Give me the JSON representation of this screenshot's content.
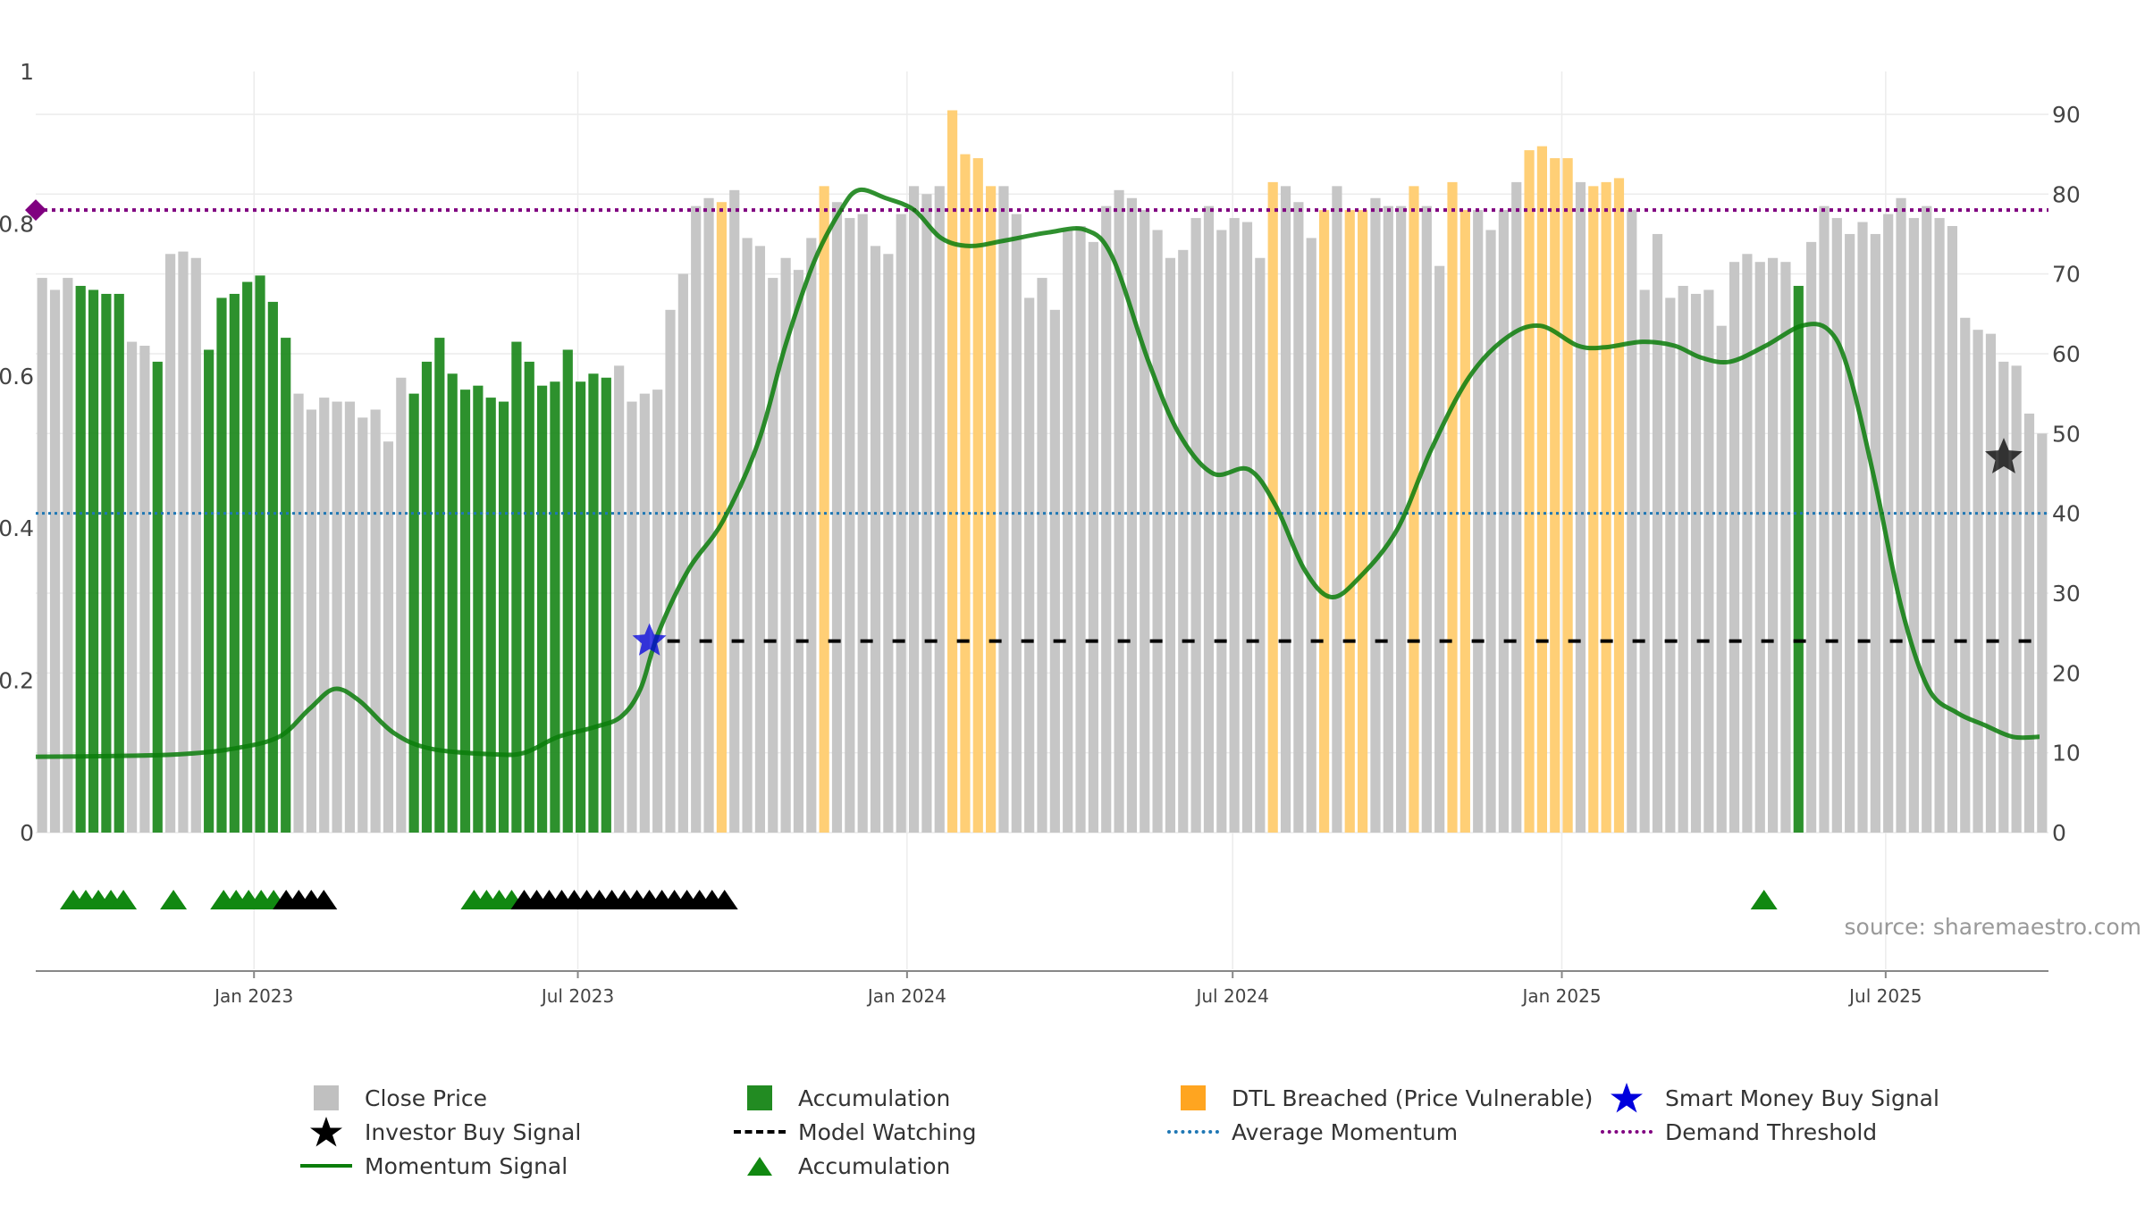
{
  "chart_data": {
    "type": "bar",
    "left_axis": {
      "ticks": [
        "0",
        "0.2",
        "0.4",
        "0.6",
        "0.8",
        "1"
      ],
      "range": [
        0,
        1
      ]
    },
    "right_axis": {
      "ticks": [
        "0",
        "10",
        "20",
        "30",
        "40",
        "50",
        "60",
        "70",
        "80",
        "90"
      ],
      "range": [
        0,
        95
      ]
    },
    "x_axis": {
      "start": "2022-09-01",
      "end": "2025-09-30",
      "ticks": [
        {
          "date": "2023-01-01",
          "label": "Jan 2023"
        },
        {
          "date": "2023-07-01",
          "label": "Jul 2023"
        },
        {
          "date": "2024-01-01",
          "label": "Jan 2024"
        },
        {
          "date": "2024-07-01",
          "label": "Jul 2024"
        },
        {
          "date": "2025-01-01",
          "label": "Jan 2025"
        },
        {
          "date": "2025-07-01",
          "label": "Jul 2025"
        }
      ]
    },
    "close_price": [
      {
        "value": 69.5,
        "state": "close"
      },
      {
        "value": 68,
        "state": "close"
      },
      {
        "value": 69.5,
        "state": "close"
      },
      {
        "value": 68.5,
        "state": "accumulation"
      },
      {
        "value": 68,
        "state": "accumulation"
      },
      {
        "value": 67.5,
        "state": "accumulation"
      },
      {
        "value": 67.5,
        "state": "accumulation"
      },
      {
        "value": 61.5,
        "state": "close"
      },
      {
        "value": 61,
        "state": "close"
      },
      {
        "value": 59,
        "state": "accumulation"
      },
      {
        "value": 72.5,
        "state": "close"
      },
      {
        "value": 72.8,
        "state": "close"
      },
      {
        "value": 72,
        "state": "close"
      },
      {
        "value": 60.5,
        "state": "accumulation"
      },
      {
        "value": 67,
        "state": "accumulation"
      },
      {
        "value": 67.5,
        "state": "accumulation"
      },
      {
        "value": 69,
        "state": "accumulation"
      },
      {
        "value": 69.8,
        "state": "accumulation"
      },
      {
        "value": 66.5,
        "state": "accumulation"
      },
      {
        "value": 62,
        "state": "accumulation"
      },
      {
        "value": 55,
        "state": "close"
      },
      {
        "value": 53,
        "state": "close"
      },
      {
        "value": 54.5,
        "state": "close"
      },
      {
        "value": 54,
        "state": "close"
      },
      {
        "value": 54,
        "state": "close"
      },
      {
        "value": 52,
        "state": "close"
      },
      {
        "value": 53,
        "state": "close"
      },
      {
        "value": 49,
        "state": "close"
      },
      {
        "value": 57,
        "state": "close"
      },
      {
        "value": 55,
        "state": "accumulation"
      },
      {
        "value": 59,
        "state": "accumulation"
      },
      {
        "value": 62,
        "state": "accumulation"
      },
      {
        "value": 57.5,
        "state": "accumulation"
      },
      {
        "value": 55.5,
        "state": "accumulation"
      },
      {
        "value": 56,
        "state": "accumulation"
      },
      {
        "value": 54.5,
        "state": "accumulation"
      },
      {
        "value": 54,
        "state": "accumulation"
      },
      {
        "value": 61.5,
        "state": "accumulation"
      },
      {
        "value": 59,
        "state": "accumulation"
      },
      {
        "value": 56,
        "state": "accumulation"
      },
      {
        "value": 56.5,
        "state": "accumulation"
      },
      {
        "value": 60.5,
        "state": "accumulation"
      },
      {
        "value": 56.5,
        "state": "accumulation"
      },
      {
        "value": 57.5,
        "state": "accumulation"
      },
      {
        "value": 57,
        "state": "accumulation"
      },
      {
        "value": 58.5,
        "state": "close"
      },
      {
        "value": 54,
        "state": "close"
      },
      {
        "value": 55,
        "state": "close"
      },
      {
        "value": 55.5,
        "state": "close"
      },
      {
        "value": 65.5,
        "state": "close"
      },
      {
        "value": 70,
        "state": "close"
      },
      {
        "value": 78.5,
        "state": "close"
      },
      {
        "value": 79.5,
        "state": "close"
      },
      {
        "value": 79,
        "state": "dtl"
      },
      {
        "value": 80.5,
        "state": "close"
      },
      {
        "value": 74.5,
        "state": "close"
      },
      {
        "value": 73.5,
        "state": "close"
      },
      {
        "value": 69.5,
        "state": "close"
      },
      {
        "value": 72,
        "state": "close"
      },
      {
        "value": 70.5,
        "state": "close"
      },
      {
        "value": 74.5,
        "state": "close"
      },
      {
        "value": 81,
        "state": "dtl"
      },
      {
        "value": 79,
        "state": "close"
      },
      {
        "value": 77,
        "state": "close"
      },
      {
        "value": 77.5,
        "state": "close"
      },
      {
        "value": 73.5,
        "state": "close"
      },
      {
        "value": 72.5,
        "state": "close"
      },
      {
        "value": 77.5,
        "state": "close"
      },
      {
        "value": 81,
        "state": "close"
      },
      {
        "value": 80,
        "state": "close"
      },
      {
        "value": 81,
        "state": "close"
      },
      {
        "value": 90.5,
        "state": "dtl"
      },
      {
        "value": 85,
        "state": "dtl"
      },
      {
        "value": 84.5,
        "state": "dtl"
      },
      {
        "value": 81,
        "state": "dtl"
      },
      {
        "value": 81,
        "state": "close"
      },
      {
        "value": 77.5,
        "state": "close"
      },
      {
        "value": 67,
        "state": "close"
      },
      {
        "value": 69.5,
        "state": "close"
      },
      {
        "value": 65.5,
        "state": "close"
      },
      {
        "value": 75.5,
        "state": "close"
      },
      {
        "value": 76,
        "state": "close"
      },
      {
        "value": 74,
        "state": "close"
      },
      {
        "value": 78.5,
        "state": "close"
      },
      {
        "value": 80.5,
        "state": "close"
      },
      {
        "value": 79.5,
        "state": "close"
      },
      {
        "value": 78,
        "state": "close"
      },
      {
        "value": 75.5,
        "state": "close"
      },
      {
        "value": 72,
        "state": "close"
      },
      {
        "value": 73,
        "state": "close"
      },
      {
        "value": 77,
        "state": "close"
      },
      {
        "value": 78.5,
        "state": "close"
      },
      {
        "value": 75.5,
        "state": "close"
      },
      {
        "value": 77,
        "state": "close"
      },
      {
        "value": 76.5,
        "state": "close"
      },
      {
        "value": 72,
        "state": "close"
      },
      {
        "value": 81.5,
        "state": "dtl"
      },
      {
        "value": 81,
        "state": "close"
      },
      {
        "value": 79,
        "state": "close"
      },
      {
        "value": 74.5,
        "state": "close"
      },
      {
        "value": 78,
        "state": "dtl"
      },
      {
        "value": 81,
        "state": "close"
      },
      {
        "value": 78,
        "state": "dtl"
      },
      {
        "value": 78,
        "state": "dtl"
      },
      {
        "value": 79.5,
        "state": "close"
      },
      {
        "value": 78.5,
        "state": "close"
      },
      {
        "value": 78.5,
        "state": "close"
      },
      {
        "value": 81,
        "state": "dtl"
      },
      {
        "value": 78.5,
        "state": "close"
      },
      {
        "value": 71,
        "state": "close"
      },
      {
        "value": 81.5,
        "state": "dtl"
      },
      {
        "value": 78,
        "state": "dtl"
      },
      {
        "value": 78,
        "state": "close"
      },
      {
        "value": 75.5,
        "state": "close"
      },
      {
        "value": 78,
        "state": "close"
      },
      {
        "value": 81.5,
        "state": "close"
      },
      {
        "value": 85.5,
        "state": "dtl"
      },
      {
        "value": 86,
        "state": "dtl"
      },
      {
        "value": 84.5,
        "state": "dtl"
      },
      {
        "value": 84.5,
        "state": "dtl"
      },
      {
        "value": 81.5,
        "state": "close"
      },
      {
        "value": 81,
        "state": "dtl"
      },
      {
        "value": 81.5,
        "state": "dtl"
      },
      {
        "value": 82,
        "state": "dtl"
      },
      {
        "value": 78,
        "state": "close"
      },
      {
        "value": 68,
        "state": "close"
      },
      {
        "value": 75,
        "state": "close"
      },
      {
        "value": 67,
        "state": "close"
      },
      {
        "value": 68.5,
        "state": "close"
      },
      {
        "value": 67.5,
        "state": "close"
      },
      {
        "value": 68,
        "state": "close"
      },
      {
        "value": 63.5,
        "state": "close"
      },
      {
        "value": 71.5,
        "state": "close"
      },
      {
        "value": 72.5,
        "state": "close"
      },
      {
        "value": 71.5,
        "state": "close"
      },
      {
        "value": 72,
        "state": "close"
      },
      {
        "value": 71.5,
        "state": "close"
      },
      {
        "value": 68.5,
        "state": "accumulation"
      },
      {
        "value": 74,
        "state": "close"
      },
      {
        "value": 78.5,
        "state": "close"
      },
      {
        "value": 77,
        "state": "close"
      },
      {
        "value": 75,
        "state": "close"
      },
      {
        "value": 76.5,
        "state": "close"
      },
      {
        "value": 75,
        "state": "close"
      },
      {
        "value": 77.5,
        "state": "close"
      },
      {
        "value": 79.5,
        "state": "close"
      },
      {
        "value": 77,
        "state": "close"
      },
      {
        "value": 78.5,
        "state": "close"
      },
      {
        "value": 77,
        "state": "close"
      },
      {
        "value": 76,
        "state": "close"
      },
      {
        "value": 64.5,
        "state": "close"
      },
      {
        "value": 63,
        "state": "close"
      },
      {
        "value": 62.5,
        "state": "close"
      },
      {
        "value": 59,
        "state": "close"
      },
      {
        "value": 58.5,
        "state": "close"
      },
      {
        "value": 52.5,
        "state": "close"
      },
      {
        "value": 50,
        "state": "close"
      }
    ],
    "momentum_signal": [
      {
        "date": "2022-09-01",
        "y": 9.5
      },
      {
        "date": "2022-10-15",
        "y": 9.6
      },
      {
        "date": "2022-11-20",
        "y": 9.8
      },
      {
        "date": "2022-12-20",
        "y": 10.5
      },
      {
        "date": "2023-01-15",
        "y": 12
      },
      {
        "date": "2023-02-01",
        "y": 15.5
      },
      {
        "date": "2023-02-15",
        "y": 18
      },
      {
        "date": "2023-03-01",
        "y": 16.5
      },
      {
        "date": "2023-03-20",
        "y": 12.5
      },
      {
        "date": "2023-04-10",
        "y": 10.5
      },
      {
        "date": "2023-05-15",
        "y": 9.8
      },
      {
        "date": "2023-06-01",
        "y": 10
      },
      {
        "date": "2023-06-20",
        "y": 12
      },
      {
        "date": "2023-07-10",
        "y": 13.2
      },
      {
        "date": "2023-07-25",
        "y": 14.5
      },
      {
        "date": "2023-08-05",
        "y": 18
      },
      {
        "date": "2023-08-15",
        "y": 25
      },
      {
        "date": "2023-09-01",
        "y": 33
      },
      {
        "date": "2023-09-20",
        "y": 39
      },
      {
        "date": "2023-10-10",
        "y": 49
      },
      {
        "date": "2023-10-25",
        "y": 61
      },
      {
        "date": "2023-11-10",
        "y": 71.5
      },
      {
        "date": "2023-11-25",
        "y": 78
      },
      {
        "date": "2023-12-05",
        "y": 80.5
      },
      {
        "date": "2023-12-20",
        "y": 79.5
      },
      {
        "date": "2024-01-05",
        "y": 78
      },
      {
        "date": "2024-01-20",
        "y": 74.5
      },
      {
        "date": "2024-02-05",
        "y": 73.5
      },
      {
        "date": "2024-02-25",
        "y": 74.2
      },
      {
        "date": "2024-03-20",
        "y": 75.2
      },
      {
        "date": "2024-04-10",
        "y": 75.5
      },
      {
        "date": "2024-04-25",
        "y": 72
      },
      {
        "date": "2024-05-15",
        "y": 59
      },
      {
        "date": "2024-06-01",
        "y": 50
      },
      {
        "date": "2024-06-20",
        "y": 45
      },
      {
        "date": "2024-07-10",
        "y": 45.5
      },
      {
        "date": "2024-07-25",
        "y": 41
      },
      {
        "date": "2024-08-10",
        "y": 33
      },
      {
        "date": "2024-08-25",
        "y": 29.5
      },
      {
        "date": "2024-09-10",
        "y": 32
      },
      {
        "date": "2024-10-01",
        "y": 38
      },
      {
        "date": "2024-10-20",
        "y": 48
      },
      {
        "date": "2024-11-10",
        "y": 57
      },
      {
        "date": "2024-12-01",
        "y": 62
      },
      {
        "date": "2024-12-20",
        "y": 63.5
      },
      {
        "date": "2025-01-10",
        "y": 61
      },
      {
        "date": "2025-01-25",
        "y": 60.8
      },
      {
        "date": "2025-02-15",
        "y": 61.5
      },
      {
        "date": "2025-03-05",
        "y": 61
      },
      {
        "date": "2025-03-20",
        "y": 59.5
      },
      {
        "date": "2025-04-05",
        "y": 59
      },
      {
        "date": "2025-04-25",
        "y": 61
      },
      {
        "date": "2025-05-15",
        "y": 63.5
      },
      {
        "date": "2025-05-30",
        "y": 63
      },
      {
        "date": "2025-06-10",
        "y": 58
      },
      {
        "date": "2025-06-25",
        "y": 44
      },
      {
        "date": "2025-07-10",
        "y": 28
      },
      {
        "date": "2025-07-25",
        "y": 18
      },
      {
        "date": "2025-08-10",
        "y": 15
      },
      {
        "date": "2025-08-25",
        "y": 13.5
      },
      {
        "date": "2025-09-10",
        "y": 12
      },
      {
        "date": "2025-09-25",
        "y": 12
      }
    ],
    "model_watching": {
      "y": 24,
      "from": "2023-08-20",
      "to": "2025-09-25"
    },
    "average_momentum": 40,
    "demand_threshold": 78,
    "smart_money_buy_signal": [
      {
        "date": "2023-08-10",
        "y": 24
      }
    ],
    "investor_buy_signal": [
      {
        "date": "2025-09-05",
        "y": 47
      }
    ],
    "accumulation_triangles": [
      {
        "date": "2022-09-22",
        "color": "green"
      },
      {
        "date": "2022-09-29",
        "color": "green"
      },
      {
        "date": "2022-10-06",
        "color": "green"
      },
      {
        "date": "2022-10-13",
        "color": "green"
      },
      {
        "date": "2022-10-20",
        "color": "green"
      },
      {
        "date": "2022-11-17",
        "color": "green"
      },
      {
        "date": "2022-12-15",
        "color": "green"
      },
      {
        "date": "2022-12-22",
        "color": "green"
      },
      {
        "date": "2022-12-29",
        "color": "green"
      },
      {
        "date": "2023-01-05",
        "color": "green"
      },
      {
        "date": "2023-01-12",
        "color": "green"
      },
      {
        "date": "2023-01-19",
        "color": "black"
      },
      {
        "date": "2023-01-26",
        "color": "black"
      },
      {
        "date": "2023-02-02",
        "color": "black"
      },
      {
        "date": "2023-02-09",
        "color": "black"
      },
      {
        "date": "2023-05-04",
        "color": "green"
      },
      {
        "date": "2023-05-11",
        "color": "green"
      },
      {
        "date": "2023-05-18",
        "color": "green"
      },
      {
        "date": "2023-05-25",
        "color": "green"
      },
      {
        "date": "2023-06-01",
        "color": "black"
      },
      {
        "date": "2023-06-08",
        "color": "black"
      },
      {
        "date": "2023-06-15",
        "color": "black"
      },
      {
        "date": "2023-06-22",
        "color": "black"
      },
      {
        "date": "2023-06-29",
        "color": "black"
      },
      {
        "date": "2023-07-06",
        "color": "black"
      },
      {
        "date": "2023-07-13",
        "color": "black"
      },
      {
        "date": "2023-07-20",
        "color": "black"
      },
      {
        "date": "2023-07-27",
        "color": "black"
      },
      {
        "date": "2023-08-03",
        "color": "black"
      },
      {
        "date": "2023-08-10",
        "color": "black"
      },
      {
        "date": "2023-08-17",
        "color": "black"
      },
      {
        "date": "2023-08-24",
        "color": "black"
      },
      {
        "date": "2023-08-31",
        "color": "black"
      },
      {
        "date": "2023-09-07",
        "color": "black"
      },
      {
        "date": "2023-09-14",
        "color": "black"
      },
      {
        "date": "2023-09-21",
        "color": "black"
      },
      {
        "date": "2025-04-24",
        "color": "green"
      }
    ],
    "colors": {
      "close": "#c6c6c6",
      "accumulation": "#228b22",
      "dtl": "#ffcf76",
      "momentum": "#0a7d0a",
      "model_watching": "#000000",
      "average_momentum": "#1f77b4",
      "demand_threshold": "#800080",
      "smart_money": "#0000dd",
      "investor": "#000000"
    }
  },
  "source_text": "source: sharemaestro.com",
  "legend": {
    "items": [
      {
        "label": "Close Price",
        "symbol": "square",
        "color": "#c0c0c0"
      },
      {
        "label": "Accumulation",
        "symbol": "square",
        "color": "#228b22"
      },
      {
        "label": "DTL Breached (Price Vulnerable)",
        "symbol": "square",
        "color": "#ffa520"
      },
      {
        "label": "Smart Money Buy Signal",
        "symbol": "star",
        "color": "#0000dd"
      },
      {
        "label": "Investor Buy Signal",
        "symbol": "star",
        "color": "#000000"
      },
      {
        "label": "Model Watching",
        "symbol": "dash",
        "color": "#000000"
      },
      {
        "label": "Average Momentum",
        "symbol": "dot",
        "color": "#1f77b4"
      },
      {
        "label": "Demand Threshold",
        "symbol": "dot",
        "color": "#800080"
      },
      {
        "label": "Momentum Signal",
        "symbol": "line",
        "color": "#0a7d0a"
      },
      {
        "label": "Accumulation",
        "symbol": "triangle",
        "color": "#118811"
      }
    ]
  }
}
